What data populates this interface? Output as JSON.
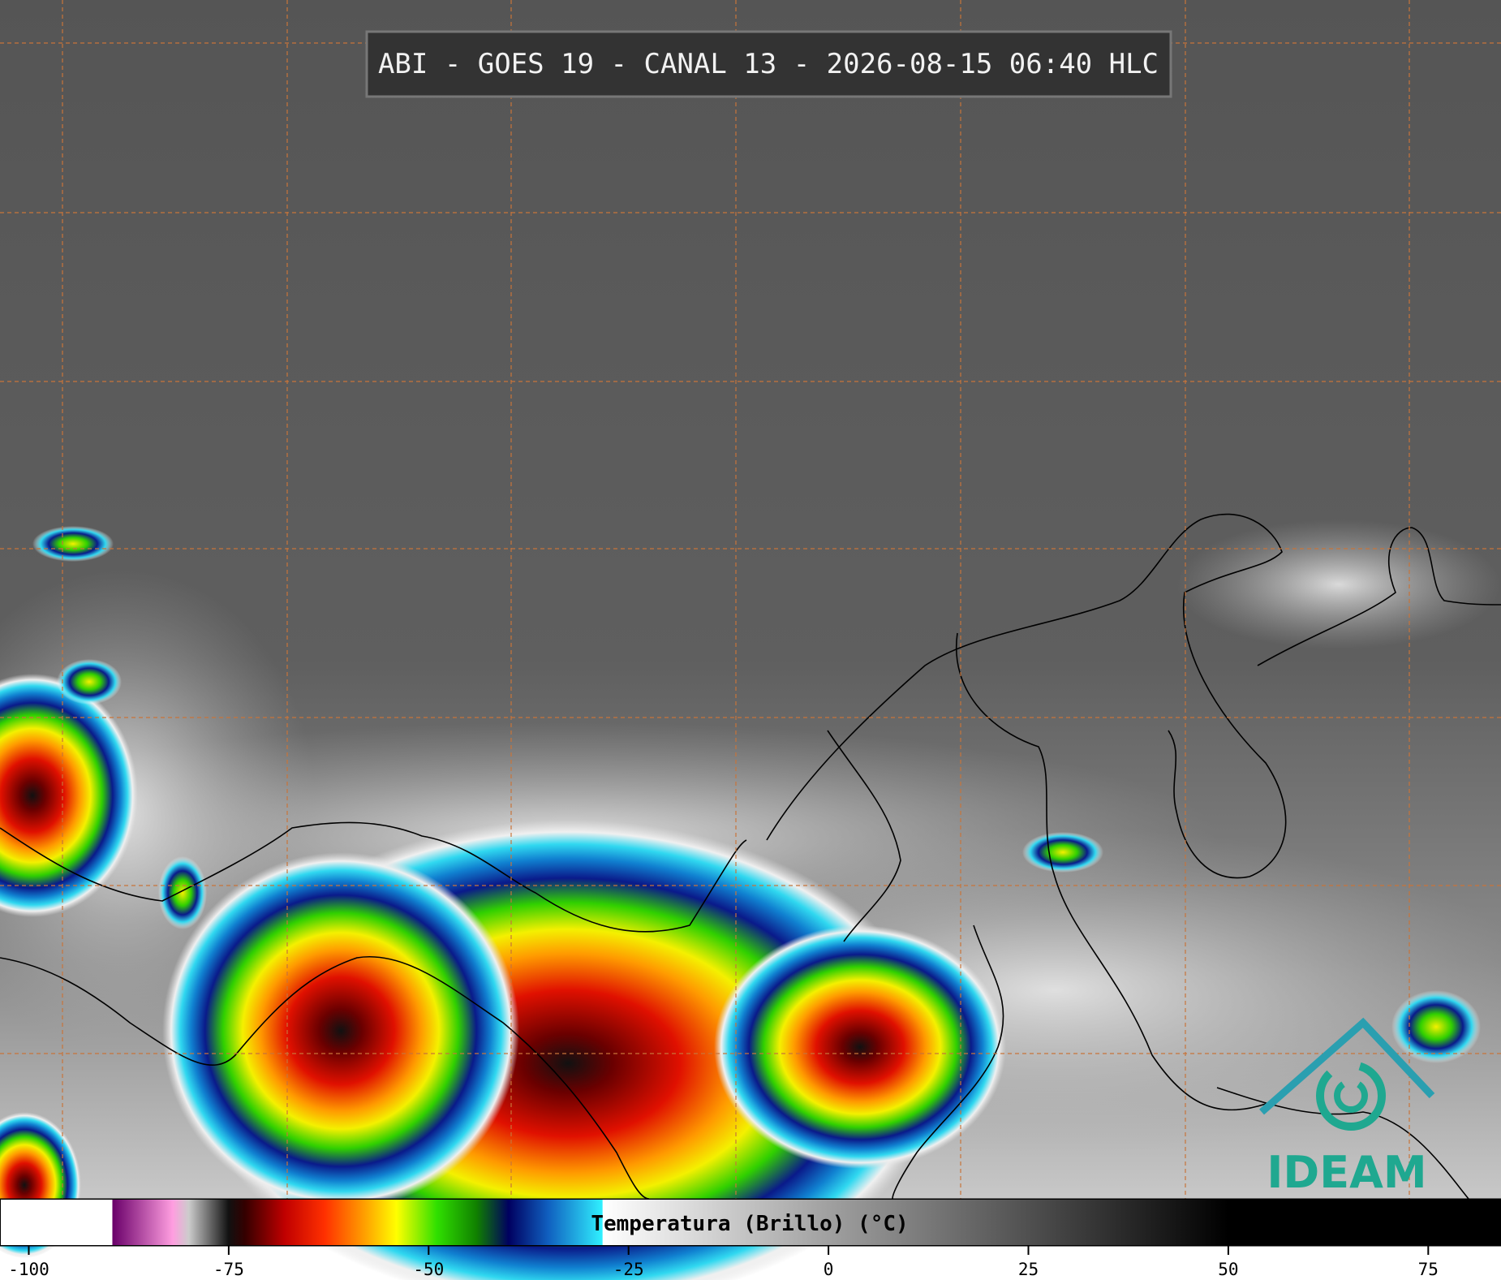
{
  "title": "ABI - GOES 19 - CANAL 13 - 2026-08-15 06:40 HLC",
  "logo": "IDEAM",
  "colorbar": {
    "label": "Temperatura (Brillo) (°C)",
    "range": [
      -103.6,
      84.1
    ],
    "ticks": [
      -100,
      -75,
      -50,
      -25,
      0,
      25,
      50,
      75
    ]
  }
}
